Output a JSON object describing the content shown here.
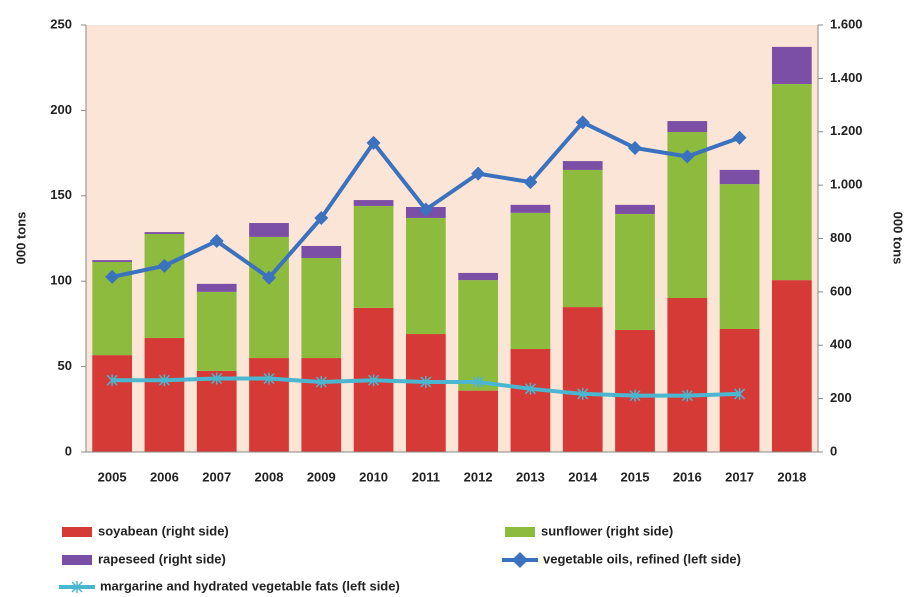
{
  "chart_data": {
    "type": "bar",
    "ylabel": "000 tons",
    "y2label": "000 tons",
    "categories": [
      "2005",
      "2006",
      "2007",
      "2008",
      "2009",
      "2010",
      "2011",
      "2012",
      "2013",
      "2014",
      "2015",
      "2016",
      "2017",
      "2018"
    ],
    "ylim": [
      0,
      250
    ],
    "yticks": [
      0,
      50,
      100,
      150,
      200,
      250
    ],
    "y2lim": [
      0,
      1600
    ],
    "y2ticks": [
      0,
      200,
      400,
      600,
      800,
      {
        "value": 1000,
        "label": "1.000"
      },
      {
        "value": 1200,
        "label": "1.200"
      },
      {
        "value": 1400,
        "label": "1.400"
      },
      {
        "value": 1600,
        "label": "1.600"
      }
    ],
    "grid": false,
    "background": "#fbe5d6",
    "series": [
      {
        "name": "soyabean (right side)",
        "type": "bar",
        "axis": "y2",
        "color": "#d63a36",
        "values": [
          363,
          427,
          304,
          352,
          352,
          540,
          442,
          230,
          386,
          543,
          457,
          577,
          461,
          644
        ]
      },
      {
        "name": "sunflower (right side)",
        "type": "bar",
        "axis": "y2",
        "color": "#8dbb3e",
        "values": [
          349,
          390,
          296,
          454,
          375,
          382,
          435,
          414,
          510,
          514,
          435,
          622,
          543,
          735
        ]
      },
      {
        "name": "rapeseed (right side)",
        "type": "bar",
        "axis": "y2",
        "color": "#7b4fa5",
        "values": [
          7,
          7,
          30,
          52,
          45,
          22,
          41,
          27,
          30,
          33,
          34,
          41,
          53,
          139
        ]
      },
      {
        "name": "vegetable oils, refined (left side)",
        "type": "line",
        "marker": "diamond",
        "color": "#3b72c0",
        "values": [
          102.5,
          109,
          123.5,
          102,
          137,
          181,
          142,
          163,
          158,
          193,
          178,
          173,
          184,
          null
        ]
      },
      {
        "name": "margarine and hydrated vegetable fats (left side)",
        "type": "line",
        "marker": "asterisk",
        "color": "#4bb6d0",
        "values": [
          42,
          42,
          43,
          43,
          41,
          42,
          41,
          41,
          37,
          34,
          33,
          33,
          34,
          null
        ]
      }
    ]
  }
}
